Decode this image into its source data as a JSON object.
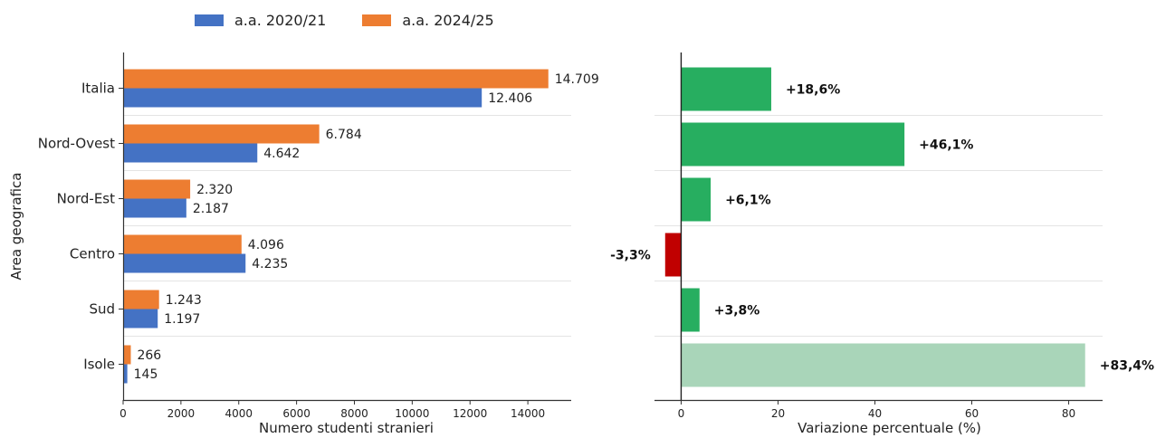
{
  "chart_data": [
    {
      "type": "bar",
      "orientation": "horizontal",
      "categories": [
        "Italia",
        "Nord-Ovest",
        "Nord-Est",
        "Centro",
        "Sud",
        "Isole"
      ],
      "series": [
        {
          "name": "a.a. 2024/25",
          "color": "#ed7d31",
          "values": [
            14709,
            6784,
            2320,
            4096,
            1243,
            266
          ],
          "labels": [
            "14.709",
            "6.784",
            "2.320",
            "4.096",
            "1.243",
            "266"
          ]
        },
        {
          "name": "a.a. 2020/21",
          "color": "#4472c4",
          "values": [
            12406,
            4642,
            2187,
            4235,
            1197,
            145
          ],
          "labels": [
            "12.406",
            "4.642",
            "2.187",
            "4.235",
            "1.197",
            "145"
          ]
        }
      ],
      "xlabel": "Numero studenti stranieri",
      "ylabel": "Area geografica",
      "xlim": [
        0,
        15500
      ],
      "xticks": [
        0,
        2000,
        4000,
        6000,
        8000,
        10000,
        12000,
        14000
      ],
      "grid": "horizontal separators",
      "legend": "top"
    },
    {
      "type": "bar",
      "orientation": "horizontal",
      "categories": [
        "Italia",
        "Nord-Ovest",
        "Nord-Est",
        "Centro",
        "Sud",
        "Isole"
      ],
      "values": [
        18.6,
        46.1,
        6.1,
        -3.3,
        3.8,
        83.4
      ],
      "labels": [
        "+18,6%",
        "+46,1%",
        "+6,1%",
        "-3,3%",
        "+3,8%",
        "+83,4%"
      ],
      "colors": [
        "#27ae60",
        "#27ae60",
        "#27ae60",
        "#c00000",
        "#27ae60",
        "#a9d5b9"
      ],
      "xlabel": "Variazione percentuale (%)",
      "xlim": [
        -5.5,
        87
      ],
      "xticks": [
        0,
        20,
        40,
        60,
        80
      ],
      "grid": "horizontal separators"
    }
  ]
}
